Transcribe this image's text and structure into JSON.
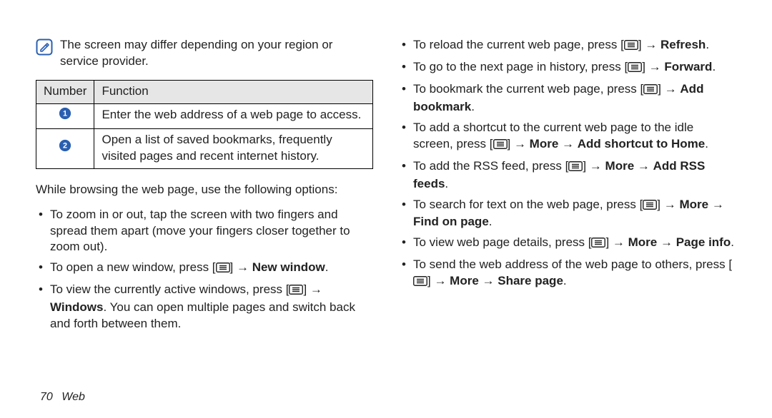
{
  "note": {
    "text": "The screen may differ depending on your region or service provider.",
    "icon_stroke": "#2a5fb0",
    "icon_size": 24
  },
  "table": {
    "headers": {
      "number": "Number",
      "function": "Function"
    },
    "rows": [
      {
        "num": "1",
        "desc": "Enter the web address of a web page to access."
      },
      {
        "num": "2",
        "desc": "Open a list of saved bookmarks, frequently visited pages and recent internet history."
      }
    ],
    "circle_fill": "#2a5fb0",
    "circle_text": "#ffffff",
    "circle_size": 18,
    "header_bg": "#e6e6e6"
  },
  "lead": "While browsing the web page, use the following options:",
  "left_bullets": [
    {
      "segments": [
        {
          "t": "To zoom in or out, tap the screen with two fingers and spread them apart (move your fingers closer together to zoom out)."
        }
      ]
    },
    {
      "segments": [
        {
          "t": "To open a new window, press ["
        },
        {
          "icon": "menu"
        },
        {
          "t": "] → "
        },
        {
          "t": "New window",
          "b": true
        },
        {
          "t": "."
        }
      ]
    },
    {
      "segments": [
        {
          "t": "To view the currently active windows, press ["
        },
        {
          "icon": "menu"
        },
        {
          "t": "] → "
        },
        {
          "t": "Windows",
          "b": true
        },
        {
          "t": ". You can open multiple pages and switch back and forth between them."
        }
      ]
    }
  ],
  "right_bullets": [
    {
      "segments": [
        {
          "t": "To reload the current web page, press ["
        },
        {
          "icon": "menu"
        },
        {
          "t": "] → "
        },
        {
          "t": "Refresh",
          "b": true
        },
        {
          "t": "."
        }
      ]
    },
    {
      "segments": [
        {
          "t": "To go to the next page in history, press ["
        },
        {
          "icon": "menu"
        },
        {
          "t": "] → "
        },
        {
          "t": "Forward",
          "b": true
        },
        {
          "t": "."
        }
      ]
    },
    {
      "segments": [
        {
          "t": "To bookmark the current web page, press ["
        },
        {
          "icon": "menu"
        },
        {
          "t": "] → "
        },
        {
          "t": "Add bookmark",
          "b": true
        },
        {
          "t": "."
        }
      ]
    },
    {
      "segments": [
        {
          "t": "To add a shortcut to the current web page to the idle screen, press ["
        },
        {
          "icon": "menu"
        },
        {
          "t": "] → "
        },
        {
          "t": "More",
          "b": true
        },
        {
          "t": " → "
        },
        {
          "t": "Add shortcut to Home",
          "b": true
        },
        {
          "t": "."
        }
      ]
    },
    {
      "segments": [
        {
          "t": "To add the RSS feed, press ["
        },
        {
          "icon": "menu"
        },
        {
          "t": "] → "
        },
        {
          "t": "More",
          "b": true
        },
        {
          "t": " → "
        },
        {
          "t": "Add RSS feeds",
          "b": true
        },
        {
          "t": "."
        }
      ]
    },
    {
      "segments": [
        {
          "t": "To search for text on the web page, press ["
        },
        {
          "icon": "menu"
        },
        {
          "t": "] → "
        },
        {
          "t": "More",
          "b": true
        },
        {
          "t": " → "
        },
        {
          "t": "Find on page",
          "b": true
        },
        {
          "t": "."
        }
      ]
    },
    {
      "segments": [
        {
          "t": "To view web page details, press ["
        },
        {
          "icon": "menu"
        },
        {
          "t": "] → "
        },
        {
          "t": "More",
          "b": true
        },
        {
          "t": " → "
        },
        {
          "t": "Page info",
          "b": true
        },
        {
          "t": "."
        }
      ]
    },
    {
      "segments": [
        {
          "t": "To send the web address of the web page to others, press ["
        },
        {
          "icon": "menu"
        },
        {
          "t": "] → "
        },
        {
          "t": "More",
          "b": true
        },
        {
          "t": " → "
        },
        {
          "t": "Share page",
          "b": true
        },
        {
          "t": "."
        }
      ]
    }
  ],
  "menu_icon": {
    "width": 20,
    "height": 14,
    "stroke": "#222"
  },
  "footer": {
    "page": "70",
    "section": "Web"
  }
}
